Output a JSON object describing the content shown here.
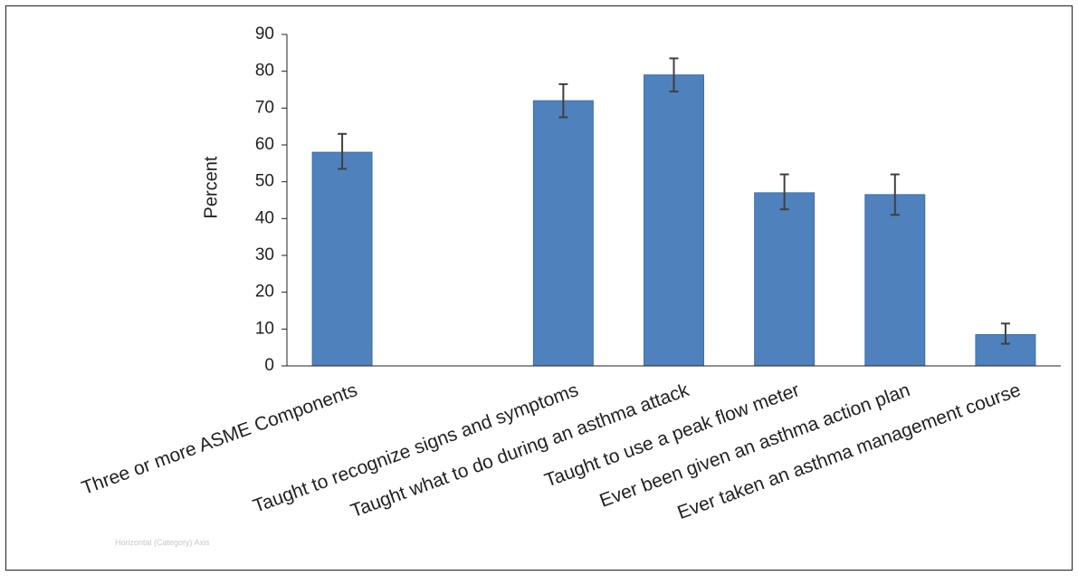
{
  "chart_data": {
    "type": "bar",
    "title": "",
    "xlabel": "",
    "ylabel": "Percent",
    "ylim": [
      0,
      90
    ],
    "yticks": [
      0,
      10,
      20,
      30,
      40,
      50,
      60,
      70,
      80,
      90
    ],
    "grid": false,
    "categories": [
      "Three or more ASME Components",
      "",
      "Taught to recognize signs and symptoms",
      "Taught what to do during an asthma attack",
      "Taught to use a peak flow meter",
      "Ever been given an asthma action plan",
      "Ever taken an asthma management course"
    ],
    "values": [
      58,
      null,
      72,
      79,
      47,
      46.5,
      8.5
    ],
    "error_low": [
      53.5,
      null,
      67.5,
      74.5,
      42.5,
      41,
      6
    ],
    "error_high": [
      63,
      null,
      76.5,
      83.5,
      52,
      52,
      11.5
    ],
    "bar_color": "#4f81bd",
    "bar_edge_color": "#3c6ea8",
    "error_color": "#404040"
  },
  "faint_tag": "Horizontal (Category) Axis"
}
